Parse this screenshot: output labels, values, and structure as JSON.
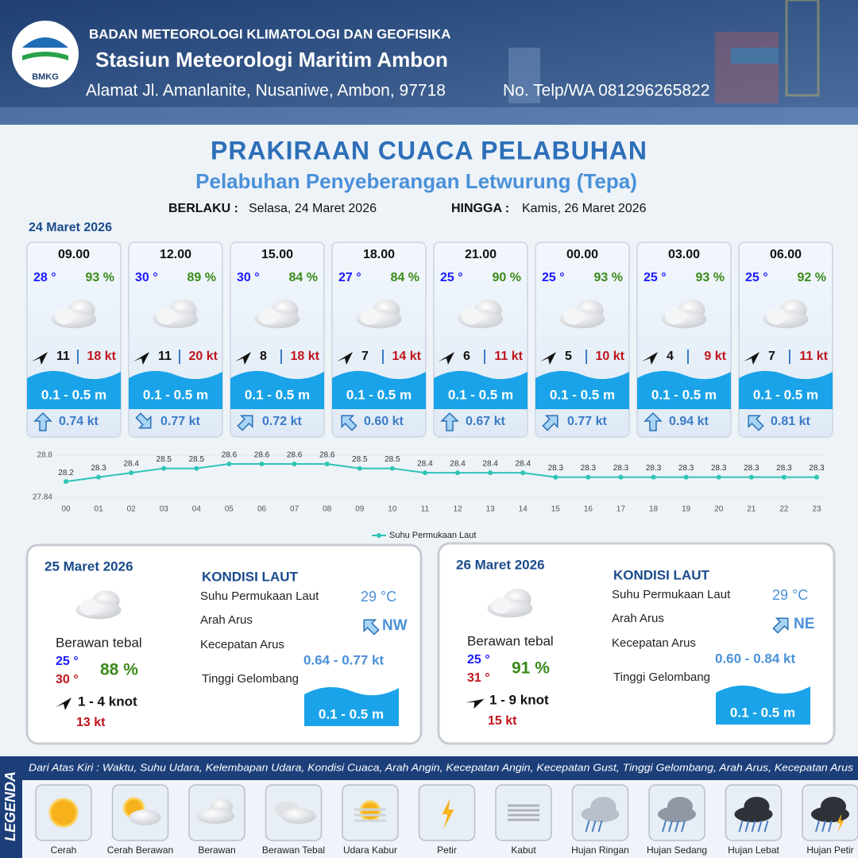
{
  "header": {
    "agency": "BADAN METEOROLOGI KLIMATOLOGI DAN GEOFISIKA",
    "station": "Stasiun Meteorologi Maritim Ambon",
    "address": "Alamat Jl. Amanlanite, Nusaniwe, Ambon, 97718",
    "phone": "No. Telp/WA  081296265822",
    "logo": "BMKG"
  },
  "title": "PRAKIRAAN CUACA PELABUHAN",
  "subtitle": "Pelabuhan Penyeberangan Letwurung (Tepa)",
  "validity": {
    "from_label": "BERLAKU :",
    "from": "Selasa, 24 Maret 2026",
    "to_label": "HINGGA :",
    "to": "Kamis, 26 Maret 2026"
  },
  "today": {
    "date": "24 Maret 2026",
    "cards": [
      {
        "time": "09.00",
        "temp": "28 °",
        "humidity": "93 %",
        "wind": "11",
        "gust": "18 kt",
        "wave": "0.1 - 0.5 m",
        "current": "0.74 kt"
      },
      {
        "time": "12.00",
        "temp": "30 °",
        "humidity": "89 %",
        "wind": "11",
        "gust": "20 kt",
        "wave": "0.1 - 0.5 m",
        "current": "0.77 kt"
      },
      {
        "time": "15.00",
        "temp": "30 °",
        "humidity": "84 %",
        "wind": "8",
        "gust": "18 kt",
        "wave": "0.1 - 0.5 m",
        "current": "0.72 kt"
      },
      {
        "time": "18.00",
        "temp": "27 °",
        "humidity": "84 %",
        "wind": "7",
        "gust": "14 kt",
        "wave": "0.1 - 0.5 m",
        "current": "0.60 kt"
      },
      {
        "time": "21.00",
        "temp": "25 °",
        "humidity": "90 %",
        "wind": "6",
        "gust": "11 kt",
        "wave": "0.1 - 0.5 m",
        "current": "0.67 kt"
      },
      {
        "time": "00.00",
        "temp": "25 °",
        "humidity": "93 %",
        "wind": "5",
        "gust": "10 kt",
        "wave": "0.1 - 0.5 m",
        "current": "0.77 kt"
      },
      {
        "time": "03.00",
        "temp": "25 °",
        "humidity": "93 %",
        "wind": "4",
        "gust": "9 kt",
        "wave": "0.1 - 0.5 m",
        "current": "0.94 kt"
      },
      {
        "time": "06.00",
        "temp": "25 °",
        "humidity": "92 %",
        "wind": "7",
        "gust": "11 kt",
        "wave": "0.1 - 0.5 m",
        "current": "0.81 kt"
      }
    ]
  },
  "chart_data": {
    "type": "line",
    "x": [
      "00",
      "01",
      "02",
      "03",
      "04",
      "05",
      "06",
      "07",
      "08",
      "09",
      "10",
      "11",
      "12",
      "13",
      "14",
      "15",
      "16",
      "17",
      "18",
      "19",
      "20",
      "21",
      "22",
      "23"
    ],
    "series": [
      {
        "name": "Suhu Permukaan Laut",
        "color": "#2ec4b6",
        "values": [
          28.2,
          28.3,
          28.4,
          28.5,
          28.5,
          28.6,
          28.6,
          28.6,
          28.6,
          28.5,
          28.5,
          28.4,
          28.4,
          28.4,
          28.4,
          28.3,
          28.3,
          28.3,
          28.3,
          28.3,
          28.3,
          28.3,
          28.3,
          28.3
        ]
      }
    ],
    "ylim": [
      27.84,
      28.8
    ],
    "yticks": [
      27.84,
      28.8
    ],
    "legend": "bottom"
  },
  "days": [
    {
      "date": "25 Maret 2026",
      "condition": "Berawan tebal",
      "temp_min": "25 °",
      "temp_max": "30 °",
      "humidity": "88 %",
      "wind": "1  - 4 knot",
      "gust": "13 kt",
      "sea_title": "KONDISI LAUT",
      "sst_label": "Suhu Permukaan Laut",
      "sst": "29 °C",
      "current_dir_label": "Arah Arus",
      "current_dir": "NW",
      "current_speed_label": "Kecepatan Arus",
      "current_speed": "0.64 - 0.77 kt",
      "wave_label": "Tinggi Gelombang",
      "wave": "0.1 - 0.5 m"
    },
    {
      "date": "26 Maret 2026",
      "condition": "Berawan tebal",
      "temp_min": "25 °",
      "temp_max": "31 °",
      "humidity": "91 %",
      "wind": "1  - 9 knot",
      "gust": "15 kt",
      "sea_title": "KONDISI LAUT",
      "sst_label": "Suhu Permukaan Laut",
      "sst": "29 °C",
      "current_dir_label": "Arah Arus",
      "current_dir": "NE",
      "current_speed_label": "Kecepatan Arus",
      "current_speed": "0.60 - 0.84 kt",
      "wave_label": "Tinggi Gelombang",
      "wave": "0.1 - 0.5 m"
    }
  ],
  "legend": {
    "title": "LEGENDA",
    "description": "Dari Atas Kiri : Waktu, Suhu Udara, Kelembapan Udara, Kondisi Cuaca, Arah Angin, Kecepatan Angin, Kecepatan Gust, Tinggi Gelombang, Arah Arus, Kecepatan Arus",
    "items": [
      "Cerah",
      "Cerah Berawan",
      "Berawan",
      "Berawan Tebal",
      "Udara Kabur",
      "Petir",
      "Kabut",
      "Hujan Ringan",
      "Hujan Sedang",
      "Hujan Lebat",
      "Hujan Petir"
    ]
  }
}
